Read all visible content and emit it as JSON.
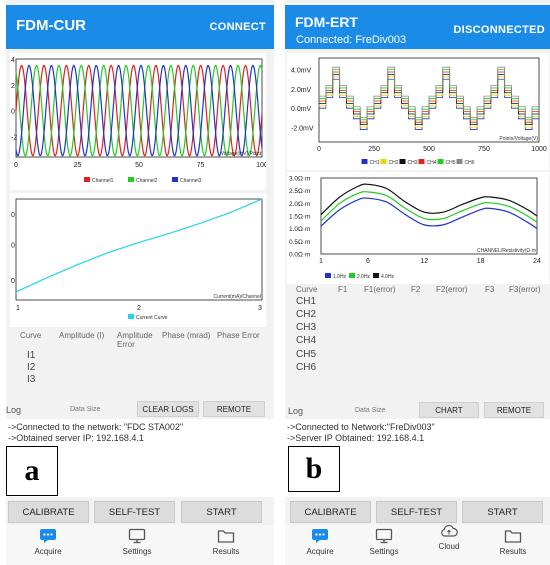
{
  "left": {
    "header": {
      "title": "FDM-CUR",
      "connect_label": "CONNECT"
    },
    "table_headers": [
      "Curve",
      "Amplitude (I)",
      "Amplitude Error",
      "Phase (mrad)",
      "Phase Error"
    ],
    "curves": [
      "I1",
      "I2",
      "I3"
    ],
    "log": {
      "title": "Log",
      "data_size_label": "Data Size",
      "clear_logs_label": "CLEAR LOGS",
      "remote_label": "REMOTE",
      "lines": [
        "->Connected to the network: \"FDC STA002\"",
        "->Obtained server IP: 192.168.4.1"
      ]
    },
    "panel_letter": "a",
    "buttons": {
      "calibrate": "CALIBRATE",
      "self_test": "SELF-TEST",
      "start": "START"
    },
    "nav": {
      "acquire": "Acquire",
      "settings": "Settings",
      "results": "Results"
    },
    "chart1": {
      "type": "line",
      "xlabel": "Voltage(mV)/Point",
      "ylabel": "",
      "x_ticks": [
        "0",
        "25",
        "50",
        "75",
        "100"
      ],
      "y_ticks": [
        "4",
        "2",
        "0",
        "-2"
      ],
      "xlim": [
        0,
        100
      ],
      "ylim": [
        -3.6,
        4
      ],
      "legend": [
        "Channel1",
        "Channel2",
        "Channel3"
      ],
      "legend_position": "bottom",
      "series": [
        {
          "name": "Channel1",
          "color": "#e02020",
          "amplitude": 3.5,
          "period": 9.1,
          "phase": 0.0
        },
        {
          "name": "Channel2",
          "color": "#22cc22",
          "amplitude": 3.5,
          "period": 9.1,
          "phase": 2.094
        },
        {
          "name": "Channel3",
          "color": "#2233cc",
          "amplitude": 3.5,
          "period": 9.1,
          "phase": 4.189
        }
      ]
    },
    "chart2": {
      "type": "line",
      "xlabel": "Current(mA)/Channel",
      "x_ticks": [
        "1",
        "2",
        "3"
      ],
      "y_ticks": [
        "0",
        "0",
        "0"
      ],
      "xlim": [
        1,
        3
      ],
      "ylim": [
        0,
        1
      ],
      "legend": [
        "Current Curve"
      ],
      "legend_position": "bottom",
      "series": [
        {
          "name": "Current Curve",
          "color": "#22d5e8",
          "x": [
            1.0,
            1.25,
            1.5,
            1.75,
            2.0,
            2.25,
            2.5,
            2.75,
            3.0
          ],
          "y": [
            0.08,
            0.22,
            0.35,
            0.47,
            0.57,
            0.66,
            0.76,
            0.87,
            1.0
          ]
        }
      ]
    }
  },
  "right": {
    "header": {
      "title": "FDM-ERT",
      "connected_text": "Connected:  FreDiv003",
      "connect_label": "DISCONNECTED"
    },
    "table_headers": [
      "Curve",
      "F1",
      "F1(error)",
      "F2",
      "F2(error)",
      "F3",
      "F3(error)"
    ],
    "curves": [
      "CH1",
      "CH2",
      "CH3",
      "CH4",
      "CH5",
      "CH6"
    ],
    "log": {
      "title": "Log",
      "data_size_label": "Data Size",
      "chart_label": "CHART",
      "remote_label": "REMOTE",
      "lines": [
        "->Connected to Network:\"FreDiv003\"",
        "->Server IP Obtained:  192.168.4.1"
      ]
    },
    "panel_letter": "b",
    "buttons": {
      "calibrate": "CALIBRATE",
      "self_test": "SELF-TEST",
      "start": "START"
    },
    "nav": {
      "acquire": "Acquire",
      "settings": "Settings",
      "cloud": "Cloud",
      "results": "Results"
    },
    "chart1": {
      "type": "line",
      "xlabel": "Points/Voltage(V)",
      "x_ticks": [
        "0",
        "250",
        "500",
        "750",
        "1000"
      ],
      "y_ticks": [
        "4.0mV",
        "2.0mV",
        "0.0mV",
        "-2.0mV"
      ],
      "xlim": [
        0,
        1000
      ],
      "ylim": [
        -3.5,
        5.2
      ],
      "legend": [
        "CH1",
        "CH2",
        "CH3",
        "CH4",
        "CH5",
        "CH6"
      ],
      "legend_position": "bottom",
      "series": [
        {
          "name": "CH1",
          "color": "#2233cc",
          "offset": 0.0
        },
        {
          "name": "CH2",
          "color": "#e6d800",
          "offset": 0.25
        },
        {
          "name": "CH3",
          "color": "#111111",
          "offset": 0.5
        },
        {
          "name": "CH4",
          "color": "#e02020",
          "offset": 0.75
        },
        {
          "name": "CH5",
          "color": "#22cc22",
          "offset": 1.0
        },
        {
          "name": "CH6",
          "color": "#888888",
          "offset": 1.25
        }
      ]
    },
    "chart2": {
      "type": "line",
      "xlabel": "CHANNEL/Resistivity(Ω·m",
      "x_ticks": [
        "1",
        "6",
        "12",
        "18",
        "24"
      ],
      "y_ticks": [
        "3.0Ω·m",
        "2.5Ω·m",
        "2.0Ω·m",
        "1.5Ω·m",
        "1.0Ω·m",
        "0.5Ω·m",
        "0.0Ω·m"
      ],
      "xlim": [
        1,
        24
      ],
      "ylim": [
        0,
        3
      ],
      "legend": [
        "1.0Hz",
        "2.0Hz",
        "4.0Hz"
      ],
      "legend_position": "bottom",
      "series": [
        {
          "name": "1.0Hz",
          "color": "#2233cc",
          "x": [
            1,
            3,
            5,
            6,
            8,
            10,
            12,
            14,
            16,
            18,
            19,
            21,
            23,
            24
          ],
          "y": [
            1.1,
            1.75,
            2.15,
            2.2,
            2.05,
            1.55,
            1.15,
            1.15,
            1.45,
            1.75,
            1.8,
            1.65,
            1.25,
            1.0
          ]
        },
        {
          "name": "2.0Hz",
          "color": "#22cc22",
          "x": [
            1,
            3,
            5,
            6,
            8,
            10,
            12,
            14,
            16,
            18,
            19,
            21,
            23,
            24
          ],
          "y": [
            1.3,
            2.0,
            2.4,
            2.45,
            2.3,
            1.8,
            1.4,
            1.4,
            1.7,
            1.98,
            2.02,
            1.88,
            1.5,
            1.25
          ]
        },
        {
          "name": "4.0Hz",
          "color": "#111111",
          "x": [
            1,
            3,
            5,
            6,
            8,
            10,
            12,
            14,
            16,
            18,
            19,
            21,
            23,
            24
          ],
          "y": [
            1.55,
            2.25,
            2.68,
            2.75,
            2.58,
            2.05,
            1.65,
            1.65,
            1.95,
            2.22,
            2.25,
            2.12,
            1.75,
            1.5
          ]
        }
      ]
    }
  }
}
